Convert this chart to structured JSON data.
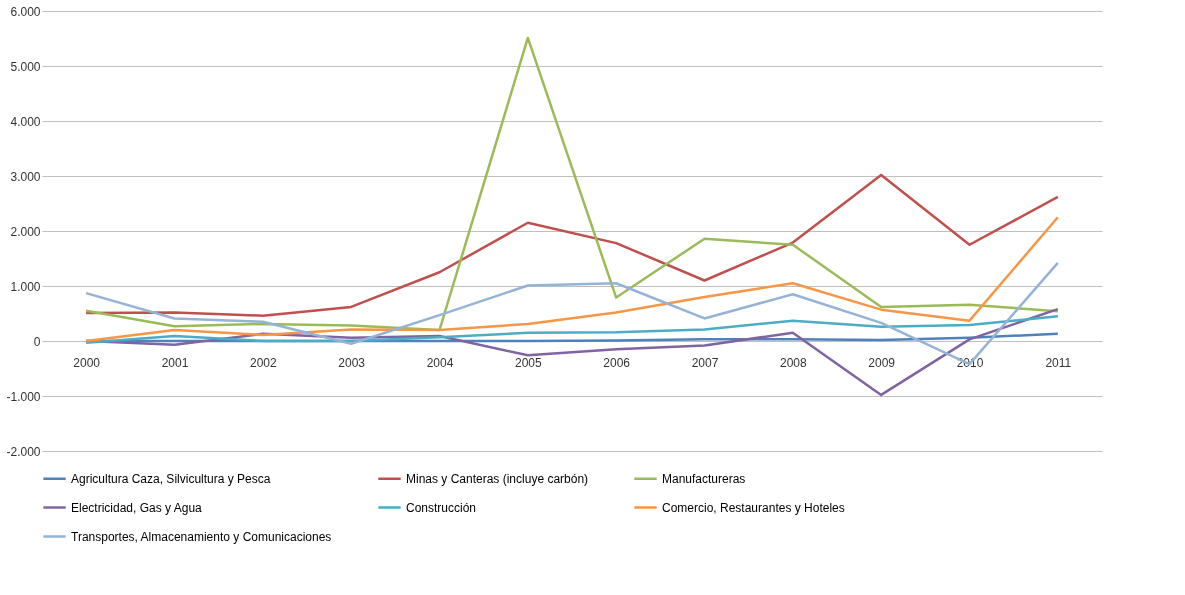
{
  "chart_data": {
    "type": "line",
    "categories": [
      "2000",
      "2001",
      "2002",
      "2003",
      "2004",
      "2005",
      "2006",
      "2007",
      "2008",
      "2009",
      "2010",
      "2011"
    ],
    "series": [
      {
        "name": "Agricultura Caza, Silvicultura y Pesca",
        "color": "#4f81bd",
        "values": [
          0,
          0,
          0,
          0,
          0,
          0,
          10,
          30,
          30,
          20,
          60,
          130
        ]
      },
      {
        "name": "Minas y Canteras (incluye carbón)",
        "color": "#c0504d",
        "values": [
          510,
          520,
          460,
          620,
          1250,
          2150,
          1780,
          1100,
          1790,
          3020,
          1750,
          2620
        ]
      },
      {
        "name": "Manufactureras",
        "color": "#9bbb59",
        "values": [
          550,
          270,
          310,
          280,
          200,
          5510,
          790,
          1860,
          1750,
          620,
          660,
          540
        ]
      },
      {
        "name": "Electricidad, Gas y Agua",
        "color": "#8064a2",
        "values": [
          0,
          -70,
          130,
          60,
          90,
          -260,
          -150,
          -80,
          150,
          -980,
          30,
          580
        ]
      },
      {
        "name": "Construcción",
        "color": "#4bacc6",
        "values": [
          -30,
          90,
          0,
          0,
          70,
          150,
          160,
          210,
          370,
          260,
          290,
          450
        ]
      },
      {
        "name": "Comercio, Restaurantes y Hoteles",
        "color": "#f79646",
        "values": [
          0,
          200,
          110,
          210,
          200,
          310,
          520,
          800,
          1050,
          570,
          370,
          2250
        ]
      },
      {
        "name": "Transportes, Almacenamiento y Comunicaciones",
        "color": "#95b3d7",
        "values": [
          870,
          410,
          350,
          -50,
          470,
          1010,
          1050,
          410,
          850,
          330,
          -420,
          1420
        ]
      }
    ],
    "ylim": [
      -2000,
      6000
    ],
    "yticks": [
      {
        "value": -2000,
        "label": "-2.000"
      },
      {
        "value": -1000,
        "label": "-1.000"
      },
      {
        "value": 0,
        "label": "0"
      },
      {
        "value": 1000,
        "label": "1.000"
      },
      {
        "value": 2000,
        "label": "2.000"
      },
      {
        "value": 3000,
        "label": "3.000"
      },
      {
        "value": 4000,
        "label": "4.000"
      },
      {
        "value": 5000,
        "label": "5.000"
      },
      {
        "value": 6000,
        "label": "6.000"
      }
    ],
    "grid": "y",
    "legend": "bottom",
    "marker": "none",
    "line_style": "solid"
  }
}
